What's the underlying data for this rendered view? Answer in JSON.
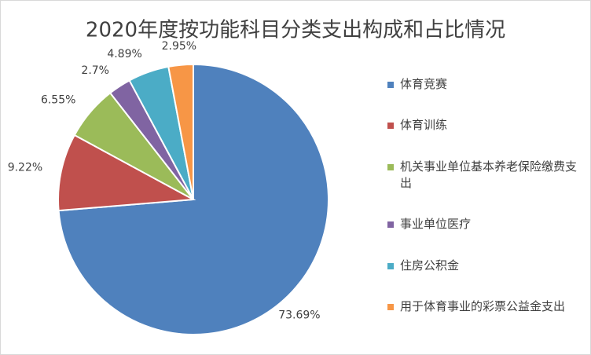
{
  "chart_data": {
    "type": "pie",
    "title": "2020年度按功能科目分类支出构成和占比情况",
    "categories": [
      "体育竞赛",
      "体育训练",
      "机关事业单位基本养老保险缴费支出",
      "事业单位医疗",
      "住房公积金",
      "用于体育事业的彩票公益金支出"
    ],
    "values": [
      73.69,
      9.22,
      6.55,
      2.7,
      4.89,
      2.95
    ],
    "value_labels": [
      "73.69%",
      "9.22%",
      "6.55%",
      "2.7%",
      "4.89%",
      "2.95%"
    ],
    "colors": [
      "#4f81bd",
      "#c0504d",
      "#9bbb59",
      "#8064a2",
      "#4bacc6",
      "#f79646"
    ],
    "legend": "right"
  }
}
